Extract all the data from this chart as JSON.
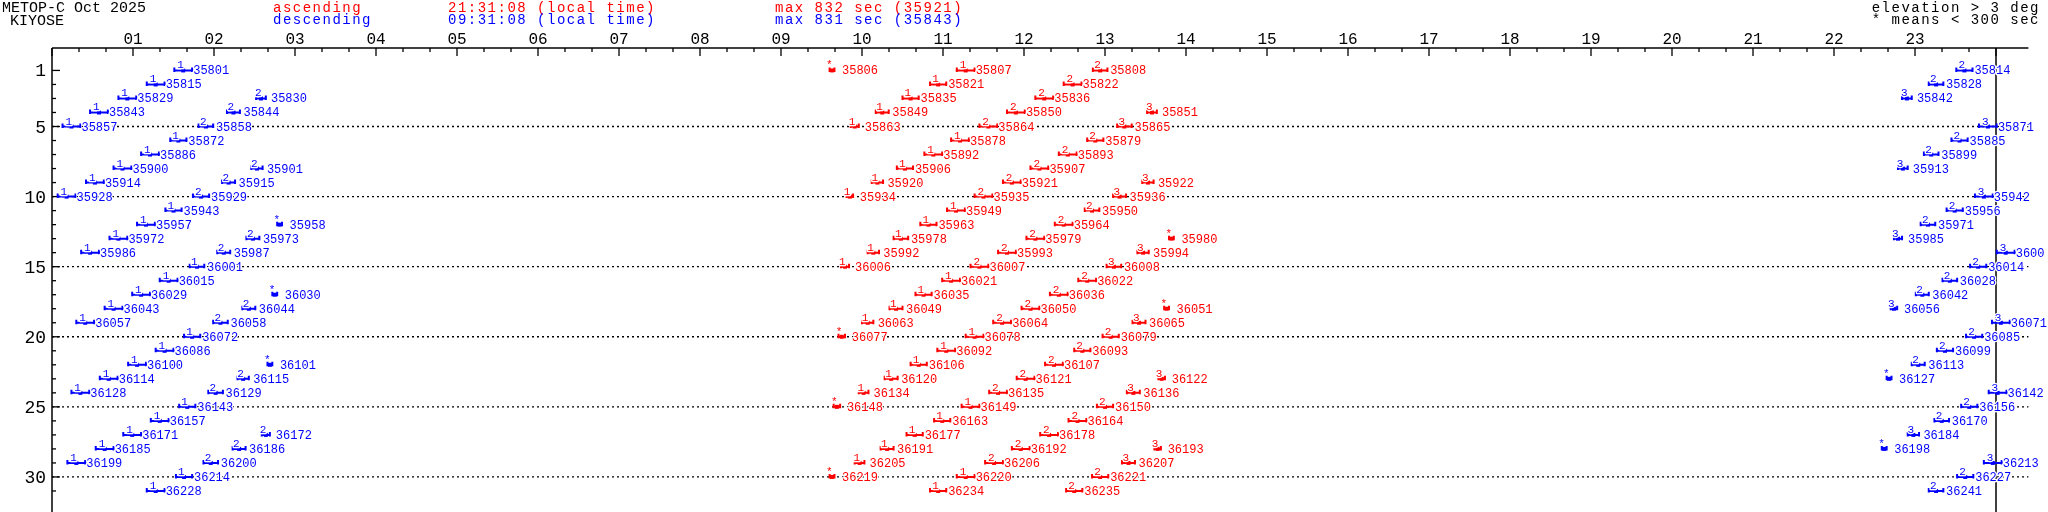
{
  "chart_data": {
    "type": "scatter",
    "title": "METOP-C Oct 2025",
    "subtitle": "KIYOSE",
    "annotations": [
      "21:31:08 (local time)",
      "max 832 sec (35921)",
      "09:31:08 (local time)",
      "max 831 sec (35843)",
      "elevation > 3 deg",
      "* means < 300 sec",
      {
        "text": "$^{*}$35806",
        "x": 9.63,
        "y": 1
      },
      {
        "text": "$^{1}$35807",
        "x": 11.28,
        "y": 1
      },
      {
        "text": "$^{2}$35808",
        "x": 12.94,
        "y": 1
      },
      {
        "text": "$^{1}$35821",
        "x": 10.94,
        "y": 2
      },
      {
        "text": "$^{2}$35822",
        "x": 12.6,
        "y": 2
      },
      {
        "text": "$^{1}$35835",
        "x": 10.6,
        "y": 3
      },
      {
        "text": "$^{2}$35836",
        "x": 12.25,
        "y": 3
      },
      {
        "text": "$^{1}$35849",
        "x": 10.25,
        "y": 4
      },
      {
        "text": "$^{2}$35850",
        "x": 11.9,
        "y": 4
      },
      {
        "text": "$^{3}$35851",
        "x": 13.58,
        "y": 4
      },
      {
        "text": "$^{1}$35863",
        "x": 9.91,
        "y": 5
      },
      {
        "text": "$^{2}$35864",
        "x": 11.56,
        "y": 5
      },
      {
        "text": "$^{3}$35865",
        "x": 13.24,
        "y": 5
      },
      {
        "text": "$^{1}$35878",
        "x": 11.21,
        "y": 6
      },
      {
        "text": "$^{2}$35879",
        "x": 12.88,
        "y": 6
      },
      {
        "text": "$^{1}$35892",
        "x": 10.88,
        "y": 7
      },
      {
        "text": "$^{2}$35893",
        "x": 12.54,
        "y": 7
      },
      {
        "text": "$^{1}$35906",
        "x": 10.53,
        "y": 8
      },
      {
        "text": "$^{2}$35907",
        "x": 12.19,
        "y": 8
      },
      {
        "text": "$^{1}$35920",
        "x": 10.19,
        "y": 9
      },
      {
        "text": "$^{2}$35921",
        "x": 11.85,
        "y": 9
      },
      {
        "text": "$^{3}$35922",
        "x": 13.53,
        "y": 9
      },
      {
        "text": "$^{1}$35934",
        "x": 9.85,
        "y": 10
      },
      {
        "text": "$^{2}$35935",
        "x": 11.5,
        "y": 10
      },
      {
        "text": "$^{3}$35936",
        "x": 13.18,
        "y": 10
      },
      {
        "text": "$^{1}$35949",
        "x": 11.16,
        "y": 11
      },
      {
        "text": "$^{2}$35950",
        "x": 12.84,
        "y": 11
      },
      {
        "text": "$^{1}$35963",
        "x": 10.82,
        "y": 12
      },
      {
        "text": "$^{2}$35964",
        "x": 12.49,
        "y": 12
      },
      {
        "text": "$^{1}$35978",
        "x": 10.48,
        "y": 13
      },
      {
        "text": "$^{2}$35979",
        "x": 12.14,
        "y": 13
      },
      {
        "text": "$^{*}$35980",
        "x": 13.82,
        "y": 13
      },
      {
        "text": "$^{1}$35992",
        "x": 10.14,
        "y": 14
      },
      {
        "text": "$^{2}$35993",
        "x": 11.79,
        "y": 14
      },
      {
        "text": "$^{3}$35994",
        "x": 13.47,
        "y": 14
      },
      {
        "text": "$^{1}$36006",
        "x": 9.79,
        "y": 15
      },
      {
        "text": "$^{2}$36007",
        "x": 11.45,
        "y": 15
      },
      {
        "text": "$^{3}$36008",
        "x": 13.11,
        "y": 15
      },
      {
        "text": "$^{1}$36021",
        "x": 11.1,
        "y": 16
      },
      {
        "text": "$^{2}$36022",
        "x": 12.78,
        "y": 16
      },
      {
        "text": "$^{1}$36035",
        "x": 10.76,
        "y": 17
      },
      {
        "text": "$^{2}$36036",
        "x": 12.43,
        "y": 17
      },
      {
        "text": "$^{1}$36049",
        "x": 10.42,
        "y": 18
      },
      {
        "text": "$^{2}$36050",
        "x": 12.08,
        "y": 18
      },
      {
        "text": "$^{*}$36051",
        "x": 13.76,
        "y": 18
      },
      {
        "text": "$^{1}$36063",
        "x": 10.07,
        "y": 19
      },
      {
        "text": "$^{2}$36064",
        "x": 11.73,
        "y": 19
      },
      {
        "text": "$^{3}$36065",
        "x": 13.42,
        "y": 19
      },
      {
        "text": "$^{*}$36077",
        "x": 9.75,
        "y": 20
      },
      {
        "text": "$^{1}$36078",
        "x": 11.39,
        "y": 20
      },
      {
        "text": "$^{2}$36079",
        "x": 13.07,
        "y": 20
      },
      {
        "text": "$^{1}$36092",
        "x": 11.04,
        "y": 21
      },
      {
        "text": "$^{2}$36093",
        "x": 12.72,
        "y": 21
      },
      {
        "text": "$^{1}$36106",
        "x": 10.7,
        "y": 22
      },
      {
        "text": "$^{2}$36107",
        "x": 12.37,
        "y": 22
      },
      {
        "text": "$^{1}$36120",
        "x": 10.36,
        "y": 23
      },
      {
        "text": "$^{2}$36121",
        "x": 12.02,
        "y": 23
      },
      {
        "text": "$^{3}$36122",
        "x": 13.7,
        "y": 23
      },
      {
        "text": "$^{1}$36134",
        "x": 10.02,
        "y": 24
      },
      {
        "text": "$^{2}$36135",
        "x": 11.68,
        "y": 24
      },
      {
        "text": "$^{3}$36136",
        "x": 13.35,
        "y": 24
      },
      {
        "text": "$^{*}$36148",
        "x": 9.69,
        "y": 25
      },
      {
        "text": "$^{1}$36149",
        "x": 11.34,
        "y": 25
      },
      {
        "text": "$^{2}$36150",
        "x": 13.0,
        "y": 25
      },
      {
        "text": "$^{1}$36163",
        "x": 10.99,
        "y": 26
      },
      {
        "text": "$^{2}$36164",
        "x": 12.66,
        "y": 26
      },
      {
        "text": "$^{1}$36177",
        "x": 10.65,
        "y": 27
      },
      {
        "text": "$^{2}$36178",
        "x": 12.31,
        "y": 27
      },
      {
        "text": "$^{1}$36191",
        "x": 10.31,
        "y": 28
      },
      {
        "text": "$^{2}$36192",
        "x": 11.96,
        "y": 28
      },
      {
        "text": "$^{3}$36193",
        "x": 13.65,
        "y": 28
      },
      {
        "text": "$^{1}$36205",
        "x": 9.97,
        "y": 29
      },
      {
        "text": "$^{2}$36206",
        "x": 11.63,
        "y": 29
      },
      {
        "text": "$^{3}$36207",
        "x": 13.29,
        "y": 29
      },
      {
        "text": "$^{*}$36219",
        "x": 9.63,
        "y": 30
      },
      {
        "text": "$^{1}$36220",
        "x": 11.28,
        "y": 30
      },
      {
        "text": "$^{2}$36221",
        "x": 12.94,
        "y": 30
      },
      {
        "text": "$^{1}$36234",
        "x": 10.94,
        "y": 31
      },
      {
        "text": "$^{2}$36235",
        "x": 12.62,
        "y": 31
      },
      {
        "text": "$^{1}$35801",
        "x": 1.62,
        "y": 1
      },
      {
        "text": "$^{1}$35815",
        "x": 1.28,
        "y": 2
      },
      {
        "text": "$^{1}$35829",
        "x": 0.93,
        "y": 3
      },
      {
        "text": "$^{2}$35830",
        "x": 2.58,
        "y": 3
      },
      {
        "text": "$^{1}$35843",
        "x": 0.58,
        "y": 4
      },
      {
        "text": "$^{2}$35844",
        "x": 2.24,
        "y": 4
      },
      {
        "text": "$^{1}$35857",
        "x": 0.24,
        "y": 5
      },
      {
        "text": "$^{2}$35858",
        "x": 1.9,
        "y": 5
      },
      {
        "text": "$^{1}$35872",
        "x": 1.56,
        "y": 6
      },
      {
        "text": "$^{1}$35886",
        "x": 1.21,
        "y": 7
      },
      {
        "text": "$^{1}$35900",
        "x": 0.87,
        "y": 8
      },
      {
        "text": "$^{2}$35901",
        "x": 2.53,
        "y": 8
      },
      {
        "text": "$^{1}$35914",
        "x": 0.53,
        "y": 9
      },
      {
        "text": "$^{2}$35915",
        "x": 2.18,
        "y": 9
      },
      {
        "text": "$^{1}$35928",
        "x": 0.18,
        "y": 10
      },
      {
        "text": "$^{2}$35929",
        "x": 1.84,
        "y": 10
      },
      {
        "text": "$^{1}$35943",
        "x": 1.5,
        "y": 11
      },
      {
        "text": "$^{1}$35957",
        "x": 1.16,
        "y": 12
      },
      {
        "text": "$^{*}$35958",
        "x": 2.81,
        "y": 12
      },
      {
        "text": "$^{1}$35972",
        "x": 0.82,
        "y": 13
      },
      {
        "text": "$^{2}$35973",
        "x": 2.48,
        "y": 13
      },
      {
        "text": "$^{1}$35986",
        "x": 0.47,
        "y": 14
      },
      {
        "text": "$^{2}$35987",
        "x": 2.12,
        "y": 14
      },
      {
        "text": "$^{1}$36001",
        "x": 1.79,
        "y": 15
      },
      {
        "text": "$^{1}$36015",
        "x": 1.44,
        "y": 16
      },
      {
        "text": "$^{1}$36029",
        "x": 1.1,
        "y": 17
      },
      {
        "text": "$^{*}$36030",
        "x": 2.75,
        "y": 17
      },
      {
        "text": "$^{1}$36043",
        "x": 0.76,
        "y": 18
      },
      {
        "text": "$^{2}$36044",
        "x": 2.43,
        "y": 18
      },
      {
        "text": "$^{1}$36057",
        "x": 0.41,
        "y": 19
      },
      {
        "text": "$^{2}$36058",
        "x": 2.08,
        "y": 19
      },
      {
        "text": "$^{1}$36072",
        "x": 1.73,
        "y": 20
      },
      {
        "text": "$^{1}$36086",
        "x": 1.39,
        "y": 21
      },
      {
        "text": "$^{1}$36100",
        "x": 1.05,
        "y": 22
      },
      {
        "text": "$^{*}$36101",
        "x": 2.69,
        "y": 22
      },
      {
        "text": "$^{1}$36114",
        "x": 0.7,
        "y": 23
      },
      {
        "text": "$^{2}$36115",
        "x": 2.36,
        "y": 23
      },
      {
        "text": "$^{1}$36128",
        "x": 0.35,
        "y": 24
      },
      {
        "text": "$^{2}$36129",
        "x": 2.02,
        "y": 24
      },
      {
        "text": "$^{1}$36143",
        "x": 1.67,
        "y": 25
      },
      {
        "text": "$^{1}$36157",
        "x": 1.33,
        "y": 26
      },
      {
        "text": "$^{1}$36171",
        "x": 0.99,
        "y": 27
      },
      {
        "text": "$^{2}$36172",
        "x": 2.64,
        "y": 27
      },
      {
        "text": "$^{1}$36185",
        "x": 0.65,
        "y": 28
      },
      {
        "text": "$^{2}$36186",
        "x": 2.31,
        "y": 28
      },
      {
        "text": "$^{1}$36199",
        "x": 0.3,
        "y": 29
      },
      {
        "text": "$^{2}$36200",
        "x": 1.96,
        "y": 29
      },
      {
        "text": "$^{1}$36214",
        "x": 1.63,
        "y": 30
      },
      {
        "text": "$^{1}$36228",
        "x": 1.28,
        "y": 31
      },
      {
        "text": "$^{2}$35814",
        "x": 23.61,
        "y": 1
      },
      {
        "text": "$^{2}$35828",
        "x": 23.26,
        "y": 2
      },
      {
        "text": "$^{3}$35842",
        "x": 22.9,
        "y": 3
      },
      {
        "text": "$^{3}$35871",
        "x": 23.9,
        "y": 5
      },
      {
        "text": "$^{2}$35885",
        "x": 23.55,
        "y": 6
      },
      {
        "text": "$^{2}$35899",
        "x": 23.2,
        "y": 7
      },
      {
        "text": "$^{3}$35913",
        "x": 22.85,
        "y": 8
      },
      {
        "text": "$^{3}$35942",
        "x": 23.85,
        "y": 10
      },
      {
        "text": "$^{2}$35956",
        "x": 23.49,
        "y": 11
      },
      {
        "text": "$^{2}$35971",
        "x": 23.16,
        "y": 12
      },
      {
        "text": "$^{3}$35985",
        "x": 22.79,
        "y": 13
      },
      {
        "text": "$^{3}$3600",
        "x": 24.12,
        "y": 14
      },
      {
        "text": "$^{2}$36014",
        "x": 23.78,
        "y": 15
      },
      {
        "text": "$^{2}$36028",
        "x": 23.43,
        "y": 16
      },
      {
        "text": "$^{2}$36042",
        "x": 23.09,
        "y": 17
      },
      {
        "text": "$^{3}$36056",
        "x": 22.74,
        "y": 18
      },
      {
        "text": "$^{3}$36071",
        "x": 24.06,
        "y": 19
      },
      {
        "text": "$^{2}$36085",
        "x": 23.73,
        "y": 20
      },
      {
        "text": "$^{2}$36099",
        "x": 23.37,
        "y": 21
      },
      {
        "text": "$^{2}$36113",
        "x": 23.04,
        "y": 22
      },
      {
        "text": "$^{*}$36127",
        "x": 22.68,
        "y": 23
      },
      {
        "text": "$^{3}$36142",
        "x": 24.02,
        "y": 24
      },
      {
        "text": "$^{2}$36156",
        "x": 23.67,
        "y": 25
      },
      {
        "text": "$^{2}$36170",
        "x": 23.33,
        "y": 26
      },
      {
        "text": "$^{3}$36184",
        "x": 22.98,
        "y": 27
      },
      {
        "text": "$^{*}$36198",
        "x": 22.62,
        "y": 28
      },
      {
        "text": "$^{3}$36213",
        "x": 23.96,
        "y": 29
      },
      {
        "text": "$^{2}$36227",
        "x": 23.62,
        "y": 30
      },
      {
        "text": "$^{2}$36241",
        "x": 23.26,
        "y": 31
      }
    ],
    "legend": "top",
    "marker": "square",
    "xlim": [
      0,
      24.4
    ],
    "xticks": [
      {
        "value": 0,
        "label": null
      },
      {
        "value": 0.3333,
        "label": null
      },
      {
        "value": 0.6667,
        "label": null
      },
      {
        "value": 1,
        "label": "01"
      },
      {
        "value": 1.3333,
        "label": null
      },
      {
        "value": 1.6667,
        "label": null
      },
      {
        "value": 2,
        "label": "02"
      },
      {
        "value": 2.3333,
        "label": null
      },
      {
        "value": 2.6667,
        "label": null
      },
      {
        "value": 3,
        "label": "03"
      },
      {
        "value": 3.3333,
        "label": null
      },
      {
        "value": 3.6667,
        "label": null
      },
      {
        "value": 4,
        "label": "04"
      },
      {
        "value": 4.3333,
        "label": null
      },
      {
        "value": 4.6667,
        "label": null
      },
      {
        "value": 5,
        "label": "05"
      },
      {
        "value": 5.3333,
        "label": null
      },
      {
        "value": 5.6667,
        "label": null
      },
      {
        "value": 6,
        "label": "06"
      },
      {
        "value": 6.3333,
        "label": null
      },
      {
        "value": 6.6667,
        "label": null
      },
      {
        "value": 7,
        "label": "07"
      },
      {
        "value": 7.3333,
        "label": null
      },
      {
        "value": 7.6667,
        "label": null
      },
      {
        "value": 8,
        "label": "08"
      },
      {
        "value": 8.3333,
        "label": null
      },
      {
        "value": 8.6667,
        "label": null
      },
      {
        "value": 9,
        "label": "09"
      },
      {
        "value": 9.3333,
        "label": null
      },
      {
        "value": 9.6667,
        "label": null
      },
      {
        "value": 10,
        "label": "10"
      },
      {
        "value": 10.3333,
        "label": null
      },
      {
        "value": 10.6667,
        "label": null
      },
      {
        "value": 11,
        "label": "11"
      },
      {
        "value": 11.3333,
        "label": null
      },
      {
        "value": 11.6667,
        "label": null
      },
      {
        "value": 12,
        "label": "12"
      },
      {
        "value": 12.3333,
        "label": null
      },
      {
        "value": 12.6667,
        "label": null
      },
      {
        "value": 13,
        "label": "13"
      },
      {
        "value": 13.3333,
        "label": null
      },
      {
        "value": 13.6667,
        "label": null
      },
      {
        "value": 14,
        "label": "14"
      },
      {
        "value": 14.3333,
        "label": null
      },
      {
        "value": 14.6667,
        "label": null
      },
      {
        "value": 15,
        "label": "15"
      },
      {
        "value": 15.3333,
        "label": null
      },
      {
        "value": 15.6667,
        "label": null
      },
      {
        "value": 16,
        "label": "16"
      },
      {
        "value": 16.3333,
        "label": null
      },
      {
        "value": 16.6667,
        "label": null
      },
      {
        "value": 17,
        "label": "17"
      },
      {
        "value": 17.3333,
        "label": null
      },
      {
        "value": 17.6667,
        "label": null
      },
      {
        "value": 18,
        "label": "18"
      },
      {
        "value": 18.3333,
        "label": null
      },
      {
        "value": 18.6667,
        "label": null
      },
      {
        "value": 19,
        "label": "19"
      },
      {
        "value": 19.3333,
        "label": null
      },
      {
        "value": 19.6667,
        "label": null
      },
      {
        "value": 20,
        "label": "20"
      },
      {
        "value": 20.3333,
        "label": null
      },
      {
        "value": 20.6667,
        "label": null
      },
      {
        "value": 21,
        "label": "21"
      },
      {
        "value": 21.3333,
        "label": null
      },
      {
        "value": 21.6667,
        "label": null
      },
      {
        "value": 22,
        "label": "22"
      },
      {
        "value": 22.3333,
        "label": null
      },
      {
        "value": 22.6667,
        "label": null
      },
      {
        "value": 23,
        "label": "23"
      },
      {
        "value": 23.3333,
        "label": null
      },
      {
        "value": 23.6667,
        "label": null
      },
      {
        "value": 24,
        "label": null
      }
    ],
    "ylim": [
      32.5,
      -0.6
    ],
    "yticks": [
      1,
      {
        "value": 2,
        "label": null
      },
      {
        "value": 3,
        "label": null
      },
      {
        "value": 4,
        "label": null
      },
      5,
      {
        "value": 6,
        "label": null
      },
      {
        "value": 7,
        "label": null
      },
      {
        "value": 8,
        "label": null
      },
      {
        "value": 9,
        "label": null
      },
      10,
      {
        "value": 11,
        "label": null
      },
      {
        "value": 12,
        "label": null
      },
      {
        "value": 13,
        "label": null
      },
      {
        "value": 14,
        "label": null
      },
      15,
      {
        "value": 16,
        "label": null
      },
      {
        "value": 17,
        "label": null
      },
      {
        "value": 18,
        "label": null
      },
      {
        "value": 19,
        "label": null
      },
      20,
      {
        "value": 21,
        "label": null
      },
      {
        "value": 22,
        "label": null
      },
      {
        "value": 23,
        "label": null
      },
      {
        "value": 24,
        "label": null
      },
      25,
      {
        "value": 26,
        "label": null
      },
      {
        "value": 27,
        "label": null
      },
      {
        "value": 28,
        "label": null
      },
      {
        "value": 29,
        "label": null
      },
      30,
      {
        "value": 31,
        "label": null
      }
    ],
    "ref_lines": [
      {
        "axis": "y",
        "value": 5,
        "line_style": "dotted",
        "color": "#000000"
      },
      {
        "axis": "y",
        "value": 10,
        "line_style": "dotted",
        "color": "#000000"
      },
      {
        "axis": "y",
        "value": 15,
        "line_style": "dotted",
        "color": "#000000"
      },
      {
        "axis": "y",
        "value": 20,
        "line_style": "dotted",
        "color": "#000000"
      },
      {
        "axis": "y",
        "value": 25,
        "line_style": "dotted",
        "color": "#000000"
      },
      {
        "axis": "y",
        "value": 30,
        "line_style": "dotted",
        "color": "#000000"
      },
      {
        "axis": "x",
        "value": 24,
        "line_style": "solid",
        "color": "#000000"
      }
    ],
    "series": [
      {
        "name": "ascending",
        "color": "#ff0000",
        "x": [
          9.63,
          11.28,
          12.94,
          10.94,
          12.6,
          10.6,
          12.25,
          10.25,
          11.9,
          13.58,
          9.91,
          11.56,
          13.24,
          11.21,
          12.88,
          10.88,
          12.54,
          10.53,
          12.19,
          10.19,
          11.85,
          13.53,
          9.85,
          11.5,
          13.18,
          11.16,
          12.84,
          10.82,
          12.49,
          10.48,
          12.14,
          13.82,
          10.14,
          11.79,
          13.47,
          9.79,
          11.45,
          13.11,
          11.1,
          12.78,
          10.76,
          12.43,
          10.42,
          12.08,
          13.76,
          10.07,
          11.73,
          13.42,
          9.75,
          11.39,
          13.07,
          11.04,
          12.72,
          10.7,
          12.37,
          10.36,
          12.02,
          13.7,
          10.02,
          11.68,
          13.35,
          9.69,
          11.34,
          13.0,
          10.99,
          12.66,
          10.65,
          12.31,
          10.31,
          11.96,
          13.65,
          9.97,
          11.63,
          13.29,
          9.63,
          11.28,
          12.94,
          10.94,
          12.62
        ],
        "values": [
          1,
          1,
          1,
          2,
          2,
          3,
          3,
          4,
          4,
          4,
          5,
          5,
          5,
          6,
          6,
          7,
          7,
          8,
          8,
          9,
          9,
          9,
          10,
          10,
          10,
          11,
          11,
          12,
          12,
          13,
          13,
          13,
          14,
          14,
          14,
          15,
          15,
          15,
          16,
          16,
          17,
          17,
          18,
          18,
          18,
          19,
          19,
          19,
          20,
          20,
          20,
          21,
          21,
          22,
          22,
          23,
          23,
          23,
          24,
          24,
          24,
          25,
          25,
          25,
          26,
          26,
          27,
          27,
          28,
          28,
          28,
          29,
          29,
          29,
          30,
          30,
          30,
          31,
          31
        ],
        "xerrors": [
          0.03,
          0.11,
          0.09,
          0.1,
          0.11,
          0.1,
          0.11,
          0.08,
          0.11,
          0.06,
          0.05,
          0.11,
          0.09,
          0.11,
          0.1,
          0.11,
          0.11,
          0.1,
          0.11,
          0.07,
          0.11,
          0.07,
          0.04,
          0.11,
          0.08,
          0.11,
          0.09,
          0.1,
          0.11,
          0.09,
          0.11,
          0.03,
          0.07,
          0.11,
          0.07,
          0.05,
          0.11,
          0.09,
          0.11,
          0.11,
          0.1,
          0.11,
          0.08,
          0.11,
          0.03,
          0.07,
          0.11,
          0.08,
          0.04,
          0.11,
          0.1,
          0.11,
          0.1,
          0.1,
          0.11,
          0.08,
          0.11,
          0.04,
          0.06,
          0.11,
          0.08,
          0.04,
          0.11,
          0.1,
          0.1,
          0.11,
          0.1,
          0.11,
          0.08,
          0.11,
          0.04,
          0.06,
          0.11,
          0.08,
          0.03,
          0.11,
          0.1,
          0.1,
          0.1
        ]
      },
      {
        "name": "descending",
        "color": "#0000ff",
        "x": [
          1.62,
          1.28,
          0.93,
          2.58,
          0.58,
          2.24,
          0.24,
          1.9,
          1.56,
          1.21,
          0.87,
          2.53,
          0.53,
          2.18,
          0.18,
          1.84,
          1.5,
          1.16,
          2.81,
          0.82,
          2.48,
          0.47,
          2.12,
          1.79,
          1.44,
          1.1,
          2.75,
          0.76,
          2.43,
          0.41,
          2.08,
          1.73,
          1.39,
          1.05,
          2.69,
          0.7,
          2.36,
          0.35,
          2.02,
          1.67,
          1.33,
          0.99,
          2.64,
          0.65,
          2.31,
          0.3,
          1.96,
          1.63,
          1.28,
          23.61,
          23.26,
          22.9,
          23.9,
          23.55,
          23.2,
          22.85,
          23.85,
          23.49,
          23.16,
          22.79,
          24.12,
          23.78,
          23.43,
          23.09,
          22.74,
          24.06,
          23.73,
          23.37,
          23.04,
          22.68,
          24.02,
          23.67,
          23.33,
          22.98,
          22.62,
          23.96,
          23.62,
          23.26
        ],
        "values": [
          1,
          2,
          3,
          3,
          4,
          4,
          5,
          5,
          6,
          7,
          8,
          8,
          9,
          9,
          10,
          10,
          11,
          12,
          12,
          13,
          13,
          14,
          14,
          15,
          16,
          17,
          17,
          18,
          18,
          19,
          19,
          20,
          21,
          22,
          22,
          23,
          23,
          24,
          24,
          25,
          26,
          27,
          27,
          28,
          28,
          29,
          29,
          30,
          31,
          1,
          2,
          3,
          5,
          6,
          7,
          8,
          10,
          11,
          12,
          13,
          14,
          15,
          16,
          17,
          18,
          19,
          20,
          21,
          22,
          23,
          24,
          25,
          26,
          27,
          28,
          29,
          30,
          31
        ],
        "xerrors": [
          0.11,
          0.11,
          0.11,
          0.06,
          0.11,
          0.08,
          0.11,
          0.09,
          0.1,
          0.11,
          0.11,
          0.07,
          0.11,
          0.08,
          0.11,
          0.1,
          0.1,
          0.11,
          0.03,
          0.11,
          0.08,
          0.11,
          0.08,
          0.09,
          0.11,
          0.11,
          0.03,
          0.11,
          0.08,
          0.11,
          0.09,
          0.1,
          0.11,
          0.11,
          0.03,
          0.11,
          0.07,
          0.11,
          0.09,
          0.1,
          0.11,
          0.11,
          0.05,
          0.11,
          0.08,
          0.11,
          0.09,
          0.1,
          0.11,
          0.1,
          0.09,
          0.06,
          0.11,
          0.1,
          0.09,
          0.06,
          0.11,
          0.1,
          0.09,
          0.05,
          0.11,
          0.1,
          0.09,
          0.08,
          0.04,
          0.11,
          0.1,
          0.1,
          0.08,
          0.03,
          0.11,
          0.1,
          0.09,
          0.07,
          0.03,
          0.11,
          0.1,
          0.09
        ]
      }
    ]
  }
}
